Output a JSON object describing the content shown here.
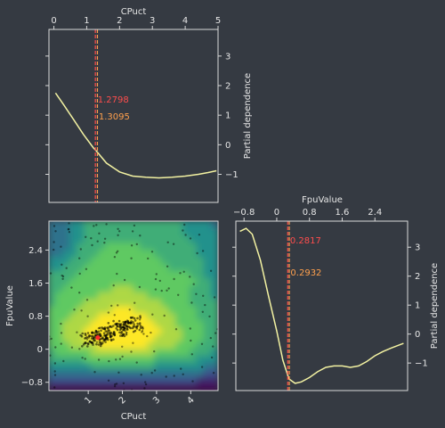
{
  "theme": {
    "background": "#353a42",
    "axis_color": "#d9d9d9",
    "text_color": "#e6e6e6",
    "curve_color": "#f3f2a2",
    "line_red": "#ff4d4d",
    "line_orange": "#ffa04d",
    "sample_color": "#000000",
    "best_color": "#ff2a2a"
  },
  "chart_data": [
    {
      "id": "cpuct_pd",
      "type": "line",
      "xlabel": "CPuct",
      "ylabel": "Partial dependence",
      "xlim": [
        -0.15,
        5.0
      ],
      "ylim": [
        -1.95,
        3.9
      ],
      "xticks": [
        0,
        1,
        2,
        3,
        4,
        5
      ],
      "yticks": [
        -1,
        0,
        1,
        2,
        3
      ],
      "x": [
        0.05,
        0.3,
        0.6,
        0.9,
        1.2,
        1.3,
        1.6,
        2.0,
        2.4,
        2.8,
        3.2,
        3.6,
        4.0,
        4.4,
        4.7,
        4.95
      ],
      "y": [
        1.75,
        1.35,
        0.85,
        0.35,
        -0.1,
        -0.22,
        -0.62,
        -0.92,
        -1.06,
        -1.1,
        -1.12,
        -1.1,
        -1.06,
        -1.0,
        -0.94,
        -0.88
      ],
      "vlines": [
        {
          "x": 1.2798,
          "label": "1.2798",
          "color": "#ff4d4d"
        },
        {
          "x": 1.3095,
          "label": "1.3095",
          "color": "#ffa04d"
        }
      ]
    },
    {
      "id": "fpu_pd",
      "type": "line",
      "xlabel": "FpuValue",
      "ylabel": "Partial dependence",
      "xlim": [
        -1.0,
        3.2
      ],
      "ylim": [
        -1.95,
        3.9
      ],
      "xticks": [
        -0.8,
        0.0,
        0.8,
        1.6,
        2.4
      ],
      "yticks": [
        -1,
        0,
        1,
        2,
        3
      ],
      "x": [
        -0.9,
        -0.75,
        -0.6,
        -0.4,
        -0.2,
        0.0,
        0.15,
        0.3,
        0.45,
        0.6,
        0.8,
        1.0,
        1.2,
        1.4,
        1.6,
        1.8,
        2.0,
        2.2,
        2.4,
        2.6,
        2.8,
        3.1
      ],
      "y": [
        3.55,
        3.65,
        3.45,
        2.55,
        1.3,
        0.1,
        -0.9,
        -1.55,
        -1.7,
        -1.65,
        -1.5,
        -1.3,
        -1.15,
        -1.1,
        -1.1,
        -1.15,
        -1.1,
        -0.95,
        -0.75,
        -0.6,
        -0.48,
        -0.32
      ],
      "vlines": [
        {
          "x": 0.2817,
          "label": "0.2817",
          "color": "#ff4d4d"
        },
        {
          "x": 0.2932,
          "label": "0.2932",
          "color": "#ffa04d"
        }
      ]
    },
    {
      "id": "joint",
      "type": "heatmap",
      "xlabel": "CPuct",
      "ylabel": "FpuValue",
      "xlim": [
        -0.15,
        4.8
      ],
      "ylim": [
        -1.0,
        3.1
      ],
      "xticks": [
        1,
        2,
        3,
        4
      ],
      "yticks": [
        -0.8,
        0.0,
        0.8,
        1.6,
        2.4
      ],
      "colormap": "viridis",
      "best": {
        "x": 1.2798,
        "y": 0.2817
      }
    }
  ]
}
